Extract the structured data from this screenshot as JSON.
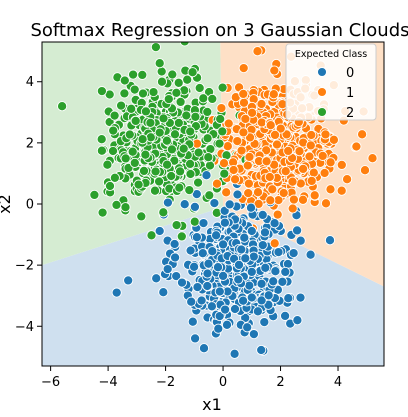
{
  "chart_data": {
    "type": "scatter",
    "title": "Softmax Regression on 3 Gaussian Clouds",
    "xlabel": "x1",
    "ylabel": "x2",
    "xlim": [
      -6.3,
      5.6
    ],
    "ylim": [
      -5.3,
      5.3
    ],
    "x_ticks": [
      -6,
      -4,
      -2,
      0,
      2,
      4
    ],
    "y_ticks": [
      -4,
      -2,
      0,
      2,
      4
    ],
    "x_tick_labels": [
      "−6",
      "−4",
      "−2",
      "0",
      "2",
      "4"
    ],
    "y_tick_labels": [
      "−4",
      "−2",
      "0",
      "2",
      "4"
    ],
    "grid": false,
    "legend": {
      "title": "Expected Class",
      "placement": "top-right",
      "entries": [
        "0",
        "1",
        "2"
      ]
    },
    "series": [
      {
        "name": "0",
        "color": "#1f77b4",
        "center": [
          0.5,
          -2.0
        ],
        "spread": [
          1.0,
          1.05
        ],
        "count": 480
      },
      {
        "name": "1",
        "color": "#ff7f0e",
        "center": [
          2.0,
          2.0
        ],
        "spread": [
          1.0,
          1.0
        ],
        "count": 480
      },
      {
        "name": "2",
        "color": "#2ca02c",
        "center": [
          -2.0,
          2.0
        ],
        "spread": [
          1.0,
          1.0
        ],
        "count": 480
      }
    ],
    "regions": [
      {
        "class": "0",
        "color": "#cfe0ef"
      },
      {
        "class": "1",
        "color": "#fee0c6"
      },
      {
        "class": "2",
        "color": "#d5ecd2"
      }
    ],
    "outliers": [
      {
        "class": "2",
        "x": -5.6,
        "y": 3.2
      },
      {
        "class": "0",
        "x": -3.7,
        "y": -2.9
      },
      {
        "class": "0",
        "x": -3.3,
        "y": -2.5
      },
      {
        "class": "0",
        "x": 0.4,
        "y": -4.9
      },
      {
        "class": "0",
        "x": 1.4,
        "y": -4.8
      },
      {
        "class": "1",
        "x": 1.2,
        "y": 5.0
      },
      {
        "class": "1",
        "x": 5.2,
        "y": 1.5
      },
      {
        "class": "0",
        "x": 2.7,
        "y": -1.2
      }
    ]
  }
}
